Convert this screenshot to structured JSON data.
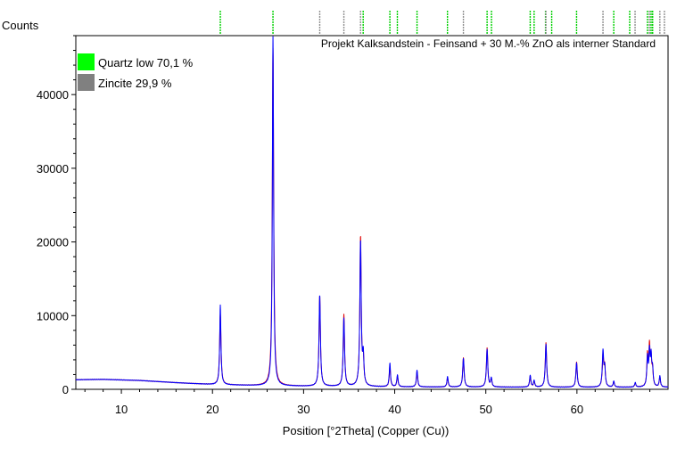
{
  "chart_data": {
    "type": "line",
    "title": "Projekt Kalksandstein - Feinsand + 30 M.-% ZnO als interner Standard",
    "ylabel": "Counts",
    "xlabel": "Position [°2Theta] (Copper (Cu))",
    "xlim": [
      5,
      70
    ],
    "ylim": [
      0,
      48000
    ],
    "x_ticks": [
      10,
      20,
      30,
      40,
      50,
      60
    ],
    "y_ticks": [
      0,
      10000,
      20000,
      30000,
      40000
    ],
    "x_tick_labels": [
      "10",
      "20",
      "30",
      "40",
      "50",
      "60"
    ],
    "y_tick_labels": [
      "0",
      "10000",
      "20000",
      "30000",
      "40000"
    ],
    "grid": false,
    "legend_position": "top-left",
    "legend": [
      {
        "label": "Quartz low 70,1 %",
        "color": "#00ff00"
      },
      {
        "label": "Zincite 29,9 %",
        "color": "#808080"
      }
    ],
    "series": [
      {
        "color": "#0000ff",
        "style": "observed",
        "background": [
          [
            5,
            1300
          ],
          [
            8,
            1350
          ],
          [
            12,
            1200
          ],
          [
            16,
            900
          ],
          [
            20,
            650
          ],
          [
            25,
            500
          ],
          [
            30,
            420
          ],
          [
            40,
            330
          ],
          [
            50,
            300
          ],
          [
            60,
            280
          ],
          [
            70,
            280
          ]
        ],
        "peaks": [
          [
            20.86,
            10800,
            0.08
          ],
          [
            26.64,
            47500,
            0.08
          ],
          [
            31.77,
            12400,
            0.09
          ],
          [
            34.42,
            9200,
            0.09
          ],
          [
            36.25,
            19700,
            0.09
          ],
          [
            36.55,
            3800,
            0.08
          ],
          [
            39.47,
            3200,
            0.08
          ],
          [
            40.3,
            1600,
            0.08
          ],
          [
            42.45,
            2300,
            0.08
          ],
          [
            45.8,
            1400,
            0.08
          ],
          [
            47.54,
            3900,
            0.09
          ],
          [
            50.14,
            5100,
            0.09
          ],
          [
            50.6,
            1200,
            0.08
          ],
          [
            54.87,
            1600,
            0.08
          ],
          [
            55.3,
            900,
            0.08
          ],
          [
            56.6,
            5800,
            0.09
          ],
          [
            59.96,
            3300,
            0.09
          ],
          [
            62.86,
            4800,
            0.09
          ],
          [
            63.05,
            2400,
            0.08
          ],
          [
            64.04,
            800,
            0.08
          ],
          [
            66.4,
            600,
            0.08
          ],
          [
            67.74,
            3900,
            0.08
          ],
          [
            67.96,
            4500,
            0.08
          ],
          [
            68.14,
            3800,
            0.08
          ],
          [
            68.3,
            2200,
            0.08
          ],
          [
            69.1,
            1500,
            0.08
          ]
        ]
      },
      {
        "color": "#e00000",
        "style": "calculated",
        "background": [
          [
            5,
            1300
          ],
          [
            8,
            1350
          ],
          [
            12,
            1200
          ],
          [
            16,
            900
          ],
          [
            20,
            650
          ],
          [
            25,
            500
          ],
          [
            30,
            420
          ],
          [
            40,
            330
          ],
          [
            50,
            300
          ],
          [
            60,
            280
          ],
          [
            70,
            280
          ]
        ],
        "peaks": [
          [
            20.86,
            9600,
            0.09
          ],
          [
            26.64,
            45800,
            0.09
          ],
          [
            31.77,
            12300,
            0.09
          ],
          [
            34.42,
            9700,
            0.09
          ],
          [
            36.25,
            20300,
            0.09
          ],
          [
            36.55,
            3600,
            0.08
          ],
          [
            39.47,
            2800,
            0.08
          ],
          [
            40.3,
            1500,
            0.08
          ],
          [
            42.45,
            2100,
            0.08
          ],
          [
            45.8,
            1300,
            0.08
          ],
          [
            47.54,
            4000,
            0.09
          ],
          [
            50.14,
            5300,
            0.09
          ],
          [
            50.6,
            1100,
            0.08
          ],
          [
            54.87,
            1500,
            0.08
          ],
          [
            55.3,
            800,
            0.08
          ],
          [
            56.6,
            6000,
            0.09
          ],
          [
            59.96,
            3400,
            0.09
          ],
          [
            62.86,
            4300,
            0.09
          ],
          [
            63.05,
            2600,
            0.08
          ],
          [
            64.04,
            750,
            0.08
          ],
          [
            66.4,
            550,
            0.08
          ],
          [
            67.74,
            4200,
            0.08
          ],
          [
            67.96,
            5200,
            0.08
          ],
          [
            68.14,
            3500,
            0.08
          ],
          [
            68.3,
            2000,
            0.08
          ],
          [
            69.1,
            1400,
            0.08
          ]
        ]
      }
    ],
    "reference_markers": {
      "quartz": {
        "color": "#00d000",
        "positions": [
          20.86,
          26.64,
          36.54,
          39.47,
          40.29,
          42.45,
          45.79,
          50.14,
          50.62,
          54.87,
          55.3,
          56.55,
          57.23,
          59.96,
          64.04,
          65.79,
          67.74,
          68.14,
          68.31
        ]
      },
      "zincite": {
        "color": "#909090",
        "positions": [
          31.77,
          34.42,
          36.25,
          47.54,
          56.6,
          62.86,
          66.38,
          67.96,
          69.1,
          69.6
        ]
      }
    }
  }
}
